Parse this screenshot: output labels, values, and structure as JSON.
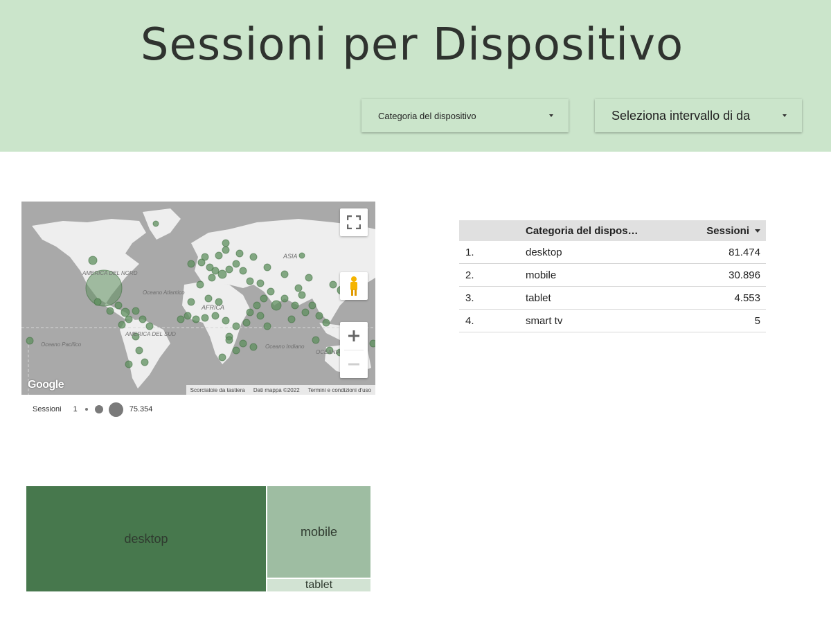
{
  "header": {
    "title": "Sessioni per Dispositivo",
    "filters": [
      {
        "label": "Categoria del dispositivo"
      },
      {
        "label": "Seleziona intervallo di da"
      }
    ]
  },
  "map": {
    "continent_labels": [
      "AMERICA DEL NORD",
      "AMERICA DEL SUD",
      "AFRICA",
      "ASIA",
      "OCEANIA"
    ],
    "ocean_labels": [
      "Oceano Atlantico",
      "Oceano Pacifico",
      "Oceano Indiano"
    ],
    "logo": "Google",
    "attribution": [
      "Scorciatoie da tastiera",
      "Dati mappa ©2022",
      "Termini e condizioni d'uso"
    ],
    "bubble_color": "#5e8f5e",
    "icons": [
      "fullscreen-icon",
      "pegman-icon",
      "zoom-in-icon",
      "zoom-out-icon"
    ]
  },
  "legend": {
    "metric": "Sessioni",
    "min": "1",
    "max": "75.354"
  },
  "table": {
    "headers": {
      "category": "Categoria del dispos…",
      "value": "Sessioni"
    },
    "rows": [
      {
        "rank": "1.",
        "category": "desktop",
        "value": "81.474"
      },
      {
        "rank": "2.",
        "category": "mobile",
        "value": "30.896"
      },
      {
        "rank": "3.",
        "category": "tablet",
        "value": "4.553"
      },
      {
        "rank": "4.",
        "category": "smart tv",
        "value": "5"
      }
    ]
  },
  "treemap": {
    "items": [
      {
        "label": "desktop",
        "value": 81474,
        "color": "#47784d"
      },
      {
        "label": "mobile",
        "value": 30896,
        "color": "#9ebda2"
      },
      {
        "label": "tablet",
        "value": 4553,
        "color": "#d2e3d3"
      }
    ]
  }
}
